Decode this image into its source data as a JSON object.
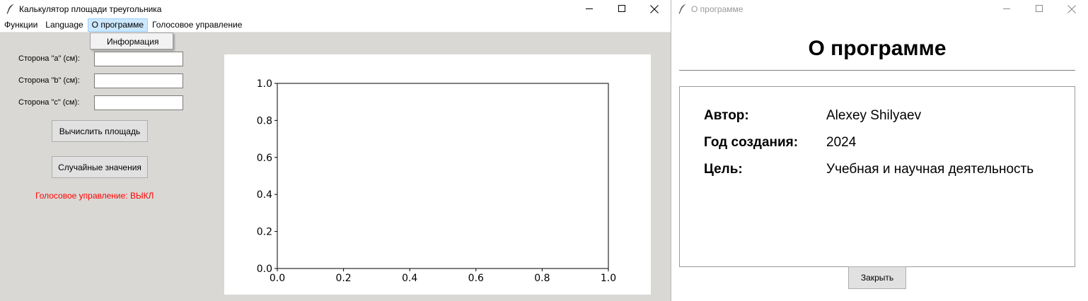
{
  "main_window": {
    "title": "Калькулятор площади треугольника",
    "menu": {
      "items": [
        "Функции",
        "Language",
        "О программе",
        "Голосовое управление"
      ],
      "active_index": 2,
      "dropdown_items": [
        "Информация"
      ]
    },
    "form": {
      "labels": [
        "Сторона \"a\" (см):",
        "Сторона \"b\" (см):",
        "Сторона \"c\" (см):"
      ],
      "values": [
        "",
        "",
        ""
      ],
      "calculate_button": "Вычислить площадь",
      "random_button": "Случайные значения",
      "voice_status": "Голосовое управление: ВЫКЛ",
      "voice_status_color": "#ff0000"
    }
  },
  "chart_data": {
    "type": "line",
    "series": [],
    "xlim": [
      0.0,
      1.0
    ],
    "ylim": [
      0.0,
      1.0
    ],
    "x_ticks": [
      "0.0",
      "0.2",
      "0.4",
      "0.6",
      "0.8",
      "1.0"
    ],
    "y_ticks": [
      "0.0",
      "0.2",
      "0.4",
      "0.6",
      "0.8",
      "1.0"
    ],
    "title": "",
    "xlabel": "",
    "ylabel": "",
    "grid": false
  },
  "about_window": {
    "title": "О программе",
    "heading": "О программе",
    "rows": [
      {
        "key": "Автор:",
        "value": "Alexey Shilyaev"
      },
      {
        "key": "Год создания:",
        "value": "2024"
      },
      {
        "key": "Цель:",
        "value": "Учебная и научная деятельность"
      }
    ],
    "close_button": "Закрыть"
  },
  "icons": {
    "app": "feather-icon",
    "minimize": "minimize-icon",
    "maximize": "maximize-icon",
    "close": "close-icon"
  }
}
